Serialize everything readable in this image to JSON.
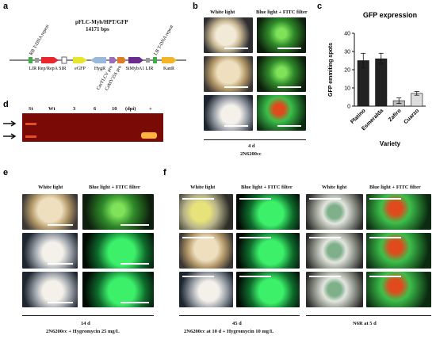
{
  "panel_labels": [
    "a",
    "b",
    "c",
    "d",
    "e",
    "f"
  ],
  "plasmid": {
    "title": "pFLC-Myb/HPT/GFP",
    "size": "14171 bps",
    "elements": [
      "RB T-DNA repeat",
      "LIR Rep/RepA SIR",
      "eGFP",
      "HygR",
      "CmYLCV pro",
      "CaMV35S pro",
      "StMybA1 LIR",
      "LB T-DNA repeat",
      "KanR"
    ]
  },
  "panel_b": {
    "headers": [
      "White light",
      "Blue light + FITC filter"
    ],
    "time": "4 d",
    "condition": "2N6200cc"
  },
  "chart_data": {
    "type": "bar",
    "title": "GFP expression",
    "x_label": "Variety",
    "y_label": "GFP emmiting spots",
    "categories": [
      "Platino",
      "Esmeralda",
      "Zafiro",
      "Cuarzo"
    ],
    "values": [
      25,
      26,
      3,
      7
    ],
    "errors": [
      4,
      3,
      1.5,
      1
    ],
    "colors": [
      "#222222",
      "#222222",
      "#bbbbbb",
      "#dddddd"
    ],
    "ylim": [
      0,
      40
    ],
    "yticks": [
      0,
      10,
      20,
      30,
      40
    ]
  },
  "gel": {
    "lanes": [
      "St",
      "Wt",
      "3",
      "6",
      "10",
      "(dpi)",
      "+"
    ]
  },
  "panel_e": {
    "headers": [
      "White light",
      "Blue light + FITC filter"
    ],
    "time": "14 d",
    "condition": "2N6200cc + Hygromycin 25 mg/L"
  },
  "panel_f": {
    "headers": [
      "White light",
      "Blue light + FITC filter",
      "White light",
      "Blue light + FITC filter"
    ],
    "time": "45 d",
    "conditions": [
      "2N6200cc at 10 d + Hygromycin 10 mg/L",
      "N6R at 5 d"
    ]
  }
}
